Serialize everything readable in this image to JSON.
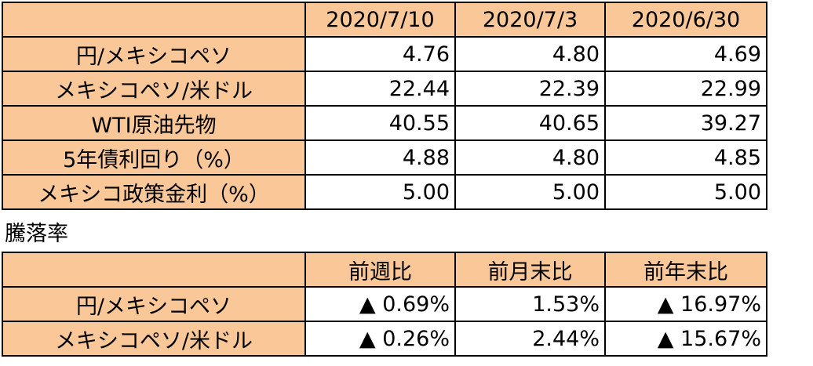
{
  "rates_table": {
    "headers": [
      "",
      "2020/7/10",
      "2020/7/3",
      "2020/6/30"
    ],
    "rows": [
      {
        "label": "円/メキシコペソ",
        "values": [
          "4.76",
          "4.80",
          "4.69"
        ]
      },
      {
        "label": "メキシコペソ/米ドル",
        "values": [
          "22.44",
          "22.39",
          "22.99"
        ]
      },
      {
        "label": "WTI原油先物",
        "values": [
          "40.55",
          "40.65",
          "39.27"
        ]
      },
      {
        "label": "5年債利回り（%）",
        "values": [
          "4.88",
          "4.80",
          "4.85"
        ]
      },
      {
        "label": "メキシコ政策金利（%）",
        "values": [
          "5.00",
          "5.00",
          "5.00"
        ]
      }
    ]
  },
  "change_section": {
    "title": "騰落率"
  },
  "change_table": {
    "headers": [
      "",
      "前週比",
      "前月末比",
      "前年末比"
    ],
    "rows": [
      {
        "label": "円/メキシコペソ",
        "values": [
          "▲ 0.69%",
          "1.53%",
          "▲ 16.97%"
        ]
      },
      {
        "label": "メキシコペソ/米ドル",
        "values": [
          "▲ 0.26%",
          "2.44%",
          "▲ 15.67%"
        ]
      }
    ]
  },
  "colors": {
    "header_fill": "#fac898",
    "cell_fill": "#ffffff",
    "border": "#000000"
  }
}
